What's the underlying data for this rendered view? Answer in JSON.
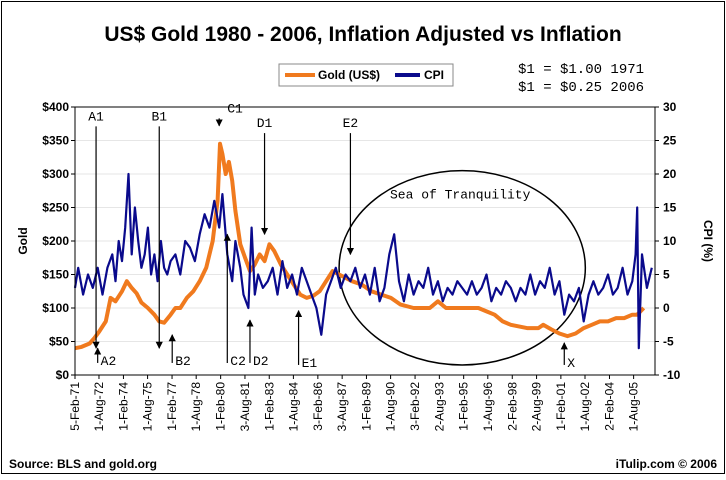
{
  "chart_data": {
    "type": "line",
    "title": "US$ Gold 1980 - 2006, Inflation Adjusted vs Inflation",
    "ylabel_left": "Gold",
    "ylabel_right": "CPI (%)",
    "ylim_left": [
      0,
      400
    ],
    "ylim_right": [
      -10,
      30
    ],
    "yticks_left": [
      "$0",
      "$50",
      "$100",
      "$150",
      "$200",
      "$250",
      "$300",
      "$350",
      "$400"
    ],
    "yticks_right": [
      "-10",
      "-5",
      "0",
      "5",
      "10",
      "15",
      "20",
      "25",
      "30"
    ],
    "x_range": [
      1971.1,
      2006.9
    ],
    "xtick_labels": [
      "5-Feb-71",
      "1-Aug-72",
      "1-Feb-74",
      "1-Aug-75",
      "1-Feb-77",
      "1-Aug-78",
      "1-Feb-80",
      "3-Aug-81",
      "1-Feb-83",
      "1-Aug-84",
      "3-Feb-86",
      "3-Aug-87",
      "1-Feb-89",
      "1-Aug-90",
      "3-Feb-92",
      "2-Aug-93",
      "1-Feb-95",
      "1-Aug-96",
      "2-Feb-98",
      "2-Aug-99",
      "1-Feb-01",
      "1-Aug-02",
      "2-Feb-04",
      "1-Aug-05"
    ],
    "xtick_values": [
      1971.1,
      1972.58,
      1974.09,
      1975.58,
      1977.09,
      1978.58,
      1980.09,
      1981.59,
      1983.09,
      1984.58,
      1986.09,
      1987.59,
      1989.09,
      1990.58,
      1992.09,
      1993.59,
      1995.09,
      1996.58,
      1998.09,
      1999.59,
      2001.09,
      2002.58,
      2004.09,
      2005.58
    ],
    "legend": {
      "placement": "top-center",
      "entries": [
        "Gold (US$)",
        "CPI"
      ]
    },
    "series": [
      {
        "name": "Gold (US$)",
        "color": "#f07a1e",
        "axis": "left",
        "x": [
          1971.1,
          1971.5,
          1972.0,
          1972.3,
          1972.6,
          1973.0,
          1973.3,
          1973.6,
          1974.0,
          1974.3,
          1974.6,
          1974.9,
          1975.2,
          1975.6,
          1976.0,
          1976.3,
          1976.6,
          1977.0,
          1977.3,
          1977.6,
          1978.0,
          1978.4,
          1978.8,
          1979.2,
          1979.6,
          1979.9,
          1980.05,
          1980.2,
          1980.4,
          1980.6,
          1980.8,
          1981.0,
          1981.3,
          1981.6,
          1981.9,
          1982.2,
          1982.5,
          1982.8,
          1983.1,
          1983.4,
          1983.8,
          1984.2,
          1984.6,
          1985.0,
          1985.4,
          1985.8,
          1986.2,
          1986.6,
          1987.0,
          1987.4,
          1987.8,
          1988.2,
          1988.8,
          1989.4,
          1990.0,
          1990.6,
          1991.2,
          1992.0,
          1993.0,
          1993.5,
          1994.0,
          1995.0,
          1996.0,
          1996.5,
          1997.0,
          1997.5,
          1998.0,
          1999.0,
          1999.7,
          2000.0,
          2000.5,
          2001.0,
          2001.5,
          2002.0,
          2002.5,
          2003.0,
          2003.5,
          2004.0,
          2004.5,
          2005.0,
          2005.5,
          2005.8,
          2006.2
        ],
        "values": [
          40,
          42,
          47,
          55,
          65,
          80,
          115,
          110,
          125,
          140,
          130,
          122,
          108,
          100,
          90,
          80,
          78,
          90,
          100,
          100,
          115,
          125,
          140,
          160,
          200,
          260,
          345,
          330,
          300,
          318,
          290,
          245,
          195,
          175,
          155,
          165,
          180,
          170,
          195,
          185,
          165,
          150,
          135,
          120,
          115,
          118,
          125,
          140,
          155,
          150,
          145,
          140,
          135,
          125,
          120,
          115,
          105,
          100,
          100,
          110,
          100,
          100,
          100,
          95,
          90,
          80,
          75,
          70,
          70,
          75,
          68,
          62,
          58,
          62,
          70,
          75,
          80,
          80,
          85,
          85,
          90,
          90,
          100
        ]
      },
      {
        "name": "CPI",
        "color": "#0a0a8c",
        "axis": "right",
        "x": [
          1971.1,
          1971.3,
          1971.6,
          1971.9,
          1972.2,
          1972.5,
          1972.8,
          1973.1,
          1973.4,
          1973.6,
          1973.8,
          1974.0,
          1974.2,
          1974.4,
          1974.6,
          1974.8,
          1975.0,
          1975.2,
          1975.4,
          1975.6,
          1975.8,
          1976.0,
          1976.2,
          1976.4,
          1976.6,
          1976.8,
          1977.0,
          1977.3,
          1977.6,
          1977.9,
          1978.2,
          1978.5,
          1978.8,
          1979.1,
          1979.4,
          1979.7,
          1980.0,
          1980.2,
          1980.5,
          1980.8,
          1981.0,
          1981.3,
          1981.5,
          1981.8,
          1982.0,
          1982.2,
          1982.4,
          1982.7,
          1983.0,
          1983.3,
          1983.6,
          1983.9,
          1984.2,
          1984.5,
          1984.8,
          1985.1,
          1985.4,
          1985.7,
          1986.0,
          1986.3,
          1986.6,
          1986.9,
          1987.2,
          1987.5,
          1987.8,
          1988.1,
          1988.4,
          1988.7,
          1989.0,
          1989.3,
          1989.6,
          1989.9,
          1990.2,
          1990.5,
          1990.8,
          1991.1,
          1991.4,
          1991.7,
          1992.0,
          1992.3,
          1992.6,
          1992.9,
          1993.2,
          1993.5,
          1993.8,
          1994.1,
          1994.4,
          1994.7,
          1995.0,
          1995.3,
          1995.6,
          1995.9,
          1996.2,
          1996.5,
          1996.8,
          1997.1,
          1997.4,
          1997.7,
          1998.0,
          1998.3,
          1998.6,
          1998.9,
          1999.2,
          1999.5,
          1999.8,
          2000.1,
          2000.4,
          2000.7,
          2001.0,
          2001.3,
          2001.6,
          2001.9,
          2002.2,
          2002.5,
          2002.8,
          2003.1,
          2003.4,
          2003.7,
          2004.0,
          2004.3,
          2004.6,
          2004.9,
          2005.2,
          2005.5,
          2005.7,
          2005.8,
          2005.9,
          2006.1,
          2006.4,
          2006.7
        ],
        "values": [
          3,
          6,
          2,
          5,
          3,
          6,
          2,
          6,
          8,
          4,
          10,
          7,
          12,
          20,
          8,
          15,
          10,
          6,
          8,
          12,
          5,
          8,
          4,
          10,
          6,
          5,
          7,
          8,
          5,
          10,
          9,
          7,
          11,
          14,
          12,
          16,
          12,
          17,
          8,
          4,
          10,
          6,
          2,
          0,
          12,
          2,
          5,
          3,
          4,
          6,
          2,
          7,
          3,
          5,
          2,
          6,
          4,
          2,
          0,
          -4,
          2,
          4,
          6,
          3,
          5,
          4,
          6,
          3,
          5,
          2,
          6,
          1,
          3,
          8,
          11,
          4,
          1,
          5,
          2,
          4,
          3,
          6,
          2,
          4,
          1,
          3,
          2,
          4,
          3,
          2,
          4,
          2,
          3,
          5,
          1,
          3,
          2,
          4,
          3,
          1,
          3,
          2,
          5,
          2,
          4,
          3,
          6,
          2,
          4,
          -1,
          2,
          1,
          3,
          -2,
          2,
          4,
          2,
          3,
          5,
          2,
          3,
          6,
          2,
          4,
          8,
          15,
          -6,
          8,
          3,
          6
        ]
      }
    ],
    "annotations": [
      {
        "label": "A1",
        "x": 1972.4,
        "dir": "down",
        "text_y": 380,
        "tip_y": 40
      },
      {
        "label": "B1",
        "x": 1976.3,
        "dir": "down",
        "text_y": 380,
        "tip_y": 40
      },
      {
        "label": "C1",
        "x": 1980.0,
        "dir": "down",
        "text_y": 392,
        "tip_y": 372
      },
      {
        "label": "D1",
        "x": 1982.8,
        "dir": "down",
        "text_y": 370,
        "tip_y": 210
      },
      {
        "label": "E2",
        "x": 1988.1,
        "dir": "down",
        "text_y": 370,
        "tip_y": 180
      },
      {
        "label": "A2",
        "x": 1972.5,
        "dir": "up",
        "text_y": 18,
        "tip_y": 40
      },
      {
        "label": "B2",
        "x": 1977.1,
        "dir": "up",
        "text_y": 18,
        "tip_y": 60
      },
      {
        "label": "C2",
        "x": 1980.5,
        "dir": "up",
        "text_y": 18,
        "tip_y": 210
      },
      {
        "label": "D2",
        "x": 1981.9,
        "dir": "up",
        "text_y": 18,
        "tip_y": 82
      },
      {
        "label": "E1",
        "x": 1984.9,
        "dir": "up",
        "text_y": 15,
        "tip_y": 96
      },
      {
        "label": "X",
        "x": 2001.3,
        "dir": "up",
        "text_y": 15,
        "tip_y": 48
      }
    ],
    "region": {
      "label": "Sea of Tranquility",
      "cx": 1995.0,
      "cy": 160,
      "rx": 7.6,
      "ry": 145
    },
    "notes": [
      "$1 = $1.00 1971",
      "$1 = $0.25 2006"
    ]
  },
  "footer": {
    "source": "Source: BLS and gold.org",
    "credit": "iTulip.com © 2006"
  }
}
